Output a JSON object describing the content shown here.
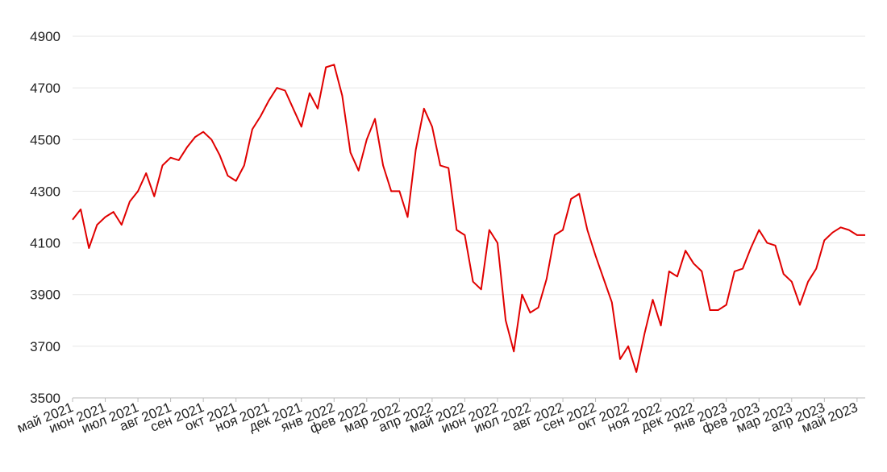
{
  "chart_data": {
    "type": "line",
    "categories": [
      "май 2021",
      null,
      null,
      null,
      "июн 2021",
      null,
      null,
      null,
      "июл 2021",
      null,
      null,
      null,
      "авг 2021",
      null,
      null,
      null,
      "сен 2021",
      null,
      null,
      null,
      "окт 2021",
      null,
      null,
      null,
      "ноя 2021",
      null,
      null,
      null,
      "дек 2021",
      null,
      null,
      null,
      "янв 2022",
      null,
      null,
      null,
      "фев 2022",
      null,
      null,
      null,
      "мар 2022",
      null,
      null,
      null,
      "апр 2022",
      null,
      null,
      null,
      "май 2022",
      null,
      null,
      null,
      "июн 2022",
      null,
      null,
      null,
      "июл 2022",
      null,
      null,
      null,
      "авг 2022",
      null,
      null,
      null,
      "сен 2022",
      null,
      null,
      null,
      "окт 2022",
      null,
      null,
      null,
      "ноя 2022",
      null,
      null,
      null,
      "дек 2022",
      null,
      null,
      null,
      "янв 2023",
      null,
      null,
      null,
      "фев 2023",
      null,
      null,
      null,
      "мар 2023",
      null,
      null,
      null,
      "апр 2023",
      null,
      null,
      null,
      "май 2023",
      null
    ],
    "values": [
      4190,
      4230,
      4080,
      4170,
      4200,
      4220,
      4170,
      4260,
      4300,
      4370,
      4280,
      4400,
      4430,
      4420,
      4470,
      4510,
      4530,
      4500,
      4440,
      4360,
      4340,
      4400,
      4540,
      4590,
      4650,
      4700,
      4690,
      4620,
      4550,
      4680,
      4620,
      4780,
      4790,
      4670,
      4450,
      4380,
      4500,
      4580,
      4400,
      4300,
      4300,
      4200,
      4460,
      4620,
      4550,
      4400,
      4390,
      4150,
      4130,
      3950,
      3920,
      4150,
      4100,
      3800,
      3680,
      3900,
      3830,
      3850,
      3960,
      4130,
      4150,
      4270,
      4290,
      4150,
      4050,
      3960,
      3870,
      3650,
      3700,
      3600,
      3750,
      3880,
      3780,
      3990,
      3970,
      4070,
      4020,
      3990,
      3840,
      3840,
      3860,
      3990,
      4000,
      4080,
      4150,
      4100,
      4090,
      3980,
      3950,
      3860,
      3950,
      4000,
      4110,
      4140,
      4160,
      4150,
      4130,
      4130
    ],
    "color": "#e00000",
    "ylim": [
      3500,
      4900
    ],
    "yticks": [
      3500,
      3700,
      3900,
      4100,
      4300,
      4500,
      4700,
      4900
    ],
    "grid": true
  }
}
